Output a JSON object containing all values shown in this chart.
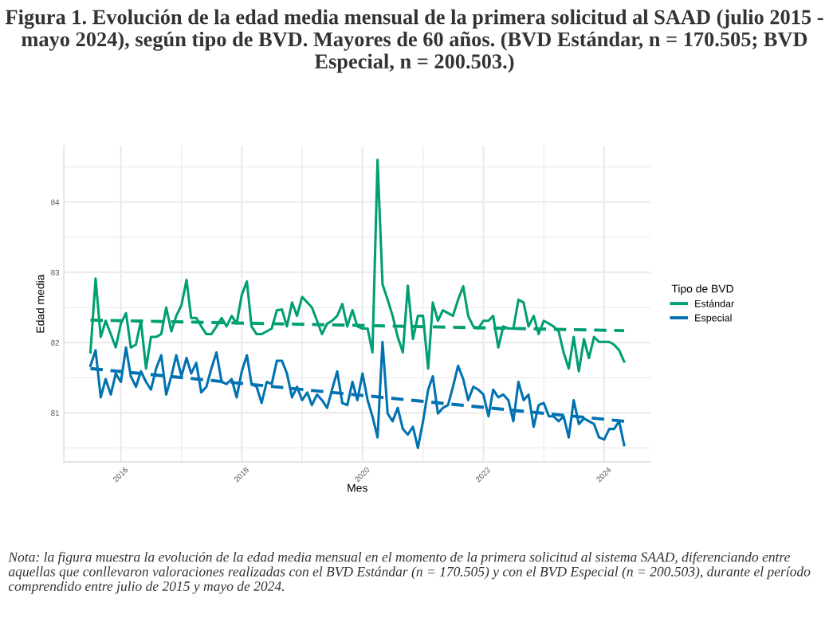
{
  "chart_data": {
    "type": "line",
    "title": "Figura 1. Evolución de la edad media mensual de la primera solicitud al SAAD (julio 2015 - mayo 2024), según tipo de BVD. Mayores de 60 años. (BVD Estándar, n = 170.505; BVD Especial, n = 200.503.)",
    "xlabel": "Mes",
    "ylabel": "Edad media",
    "legend_title": "Tipo de BVD",
    "annotations": [
      "Nota: la figura muestra la evolución de la edad media mensual en el momento de la primera solicitud al sistema SAAD, diferenciando entre aquellas que conllevaron valoraciones realizadas con el BVD Estándar (n = 170.505) y con el BVD Especial (n = 200.503), durante el período comprendido entre julio de 2015 y mayo de 2024."
    ],
    "x": [
      "2015-07",
      "2015-08",
      "2015-09",
      "2015-10",
      "2015-11",
      "2015-12",
      "2016-01",
      "2016-02",
      "2016-03",
      "2016-04",
      "2016-05",
      "2016-06",
      "2016-07",
      "2016-08",
      "2016-09",
      "2016-10",
      "2016-11",
      "2016-12",
      "2017-01",
      "2017-02",
      "2017-03",
      "2017-04",
      "2017-05",
      "2017-06",
      "2017-07",
      "2017-08",
      "2017-09",
      "2017-10",
      "2017-11",
      "2017-12",
      "2018-01",
      "2018-02",
      "2018-03",
      "2018-04",
      "2018-05",
      "2018-06",
      "2018-07",
      "2018-08",
      "2018-09",
      "2018-10",
      "2018-11",
      "2018-12",
      "2019-01",
      "2019-02",
      "2019-03",
      "2019-04",
      "2019-05",
      "2019-06",
      "2019-07",
      "2019-08",
      "2019-09",
      "2019-10",
      "2019-11",
      "2019-12",
      "2020-01",
      "2020-02",
      "2020-03",
      "2020-04",
      "2020-05",
      "2020-06",
      "2020-07",
      "2020-08",
      "2020-09",
      "2020-10",
      "2020-11",
      "2020-12",
      "2021-01",
      "2021-02",
      "2021-03",
      "2021-04",
      "2021-05",
      "2021-06",
      "2021-07",
      "2021-08",
      "2021-09",
      "2021-10",
      "2021-11",
      "2021-12",
      "2022-01",
      "2022-02",
      "2022-03",
      "2022-04",
      "2022-05",
      "2022-06",
      "2022-07",
      "2022-08",
      "2022-09",
      "2022-10",
      "2022-11",
      "2022-12",
      "2023-01",
      "2023-02",
      "2023-03",
      "2023-04",
      "2023-05",
      "2023-06",
      "2023-07",
      "2023-08",
      "2023-09",
      "2023-10",
      "2023-11",
      "2023-12",
      "2024-01",
      "2024-02",
      "2024-03",
      "2024-04",
      "2024-05"
    ],
    "series": [
      {
        "name": "Estándar",
        "color": "#009e73",
        "line_style": "solid",
        "values": [
          81.86,
          82.91,
          82.08,
          82.31,
          82.12,
          81.93,
          82.27,
          82.42,
          81.93,
          81.97,
          82.31,
          81.63,
          82.08,
          82.08,
          82.12,
          82.5,
          82.16,
          82.38,
          82.53,
          82.89,
          82.35,
          82.35,
          82.23,
          82.12,
          82.12,
          82.23,
          82.35,
          82.23,
          82.38,
          82.27,
          82.68,
          82.87,
          82.23,
          82.12,
          82.12,
          82.16,
          82.2,
          82.46,
          82.47,
          82.23,
          82.57,
          82.38,
          82.65,
          82.57,
          82.5,
          82.31,
          82.12,
          82.27,
          82.31,
          82.38,
          82.55,
          82.23,
          82.46,
          82.23,
          82.2,
          82.2,
          81.86,
          84.6,
          82.83,
          82.61,
          82.38,
          82.08,
          81.86,
          82.81,
          82.05,
          82.38,
          82.38,
          81.63,
          82.57,
          82.31,
          82.46,
          82.42,
          82.38,
          82.61,
          82.8,
          82.38,
          82.23,
          82.2,
          82.31,
          82.31,
          82.38,
          81.93,
          82.23,
          82.2,
          82.2,
          82.61,
          82.57,
          82.23,
          82.38,
          82.12,
          82.31,
          82.27,
          82.23,
          82.16,
          81.86,
          81.63,
          82.08,
          81.59,
          82.05,
          81.78,
          82.08,
          82.01,
          82.01,
          82.01,
          81.97,
          81.89,
          81.73
        ]
      },
      {
        "name": "Especial",
        "color": "#0072b2",
        "line_style": "solid",
        "values": [
          81.67,
          81.89,
          81.22,
          81.48,
          81.26,
          81.56,
          81.44,
          81.93,
          81.52,
          81.37,
          81.59,
          81.44,
          81.33,
          81.63,
          81.82,
          81.26,
          81.52,
          81.82,
          81.52,
          81.78,
          81.56,
          81.71,
          81.29,
          81.37,
          81.63,
          81.86,
          81.44,
          81.41,
          81.48,
          81.22,
          81.59,
          81.82,
          81.41,
          81.37,
          81.14,
          81.44,
          81.41,
          81.74,
          81.74,
          81.56,
          81.22,
          81.37,
          81.18,
          81.29,
          81.11,
          81.26,
          81.18,
          81.07,
          81.33,
          81.59,
          81.14,
          81.11,
          81.44,
          81.18,
          81.56,
          81.18,
          80.95,
          80.65,
          82.01,
          80.99,
          80.88,
          81.07,
          80.77,
          80.69,
          80.8,
          80.5,
          80.88,
          81.33,
          81.52,
          80.99,
          81.07,
          81.11,
          81.37,
          81.67,
          81.48,
          81.18,
          81.37,
          81.33,
          81.26,
          80.95,
          81.33,
          81.22,
          81.26,
          81.18,
          80.88,
          81.44,
          81.18,
          81.26,
          80.8,
          81.11,
          81.14,
          80.95,
          80.95,
          80.88,
          80.95,
          80.65,
          81.18,
          80.84,
          80.92,
          80.88,
          80.84,
          80.65,
          80.62,
          80.77,
          80.77,
          80.88,
          80.54
        ]
      },
      {
        "type": "line",
        "color": "#009e73",
        "line_style": "dashed",
        "x": [
          "2015-07",
          "2024-05"
        ],
        "values": [
          82.32,
          82.17
        ]
      },
      {
        "type": "line",
        "color": "#0072b2",
        "line_style": "dashed",
        "x": [
          "2015-07",
          "2024-05"
        ],
        "values": [
          81.63,
          80.88
        ]
      }
    ],
    "xlim": [
      "2015-01-21",
      "2024-10-09"
    ],
    "xticks": [
      {
        "value": "2016",
        "label": "2016"
      },
      {
        "value": "2017",
        "label": null
      },
      {
        "value": "2018",
        "label": "2018"
      },
      {
        "value": "2019",
        "label": null
      },
      {
        "value": "2020",
        "label": "2020"
      },
      {
        "value": "2021",
        "label": null
      },
      {
        "value": "2022",
        "label": "2022"
      },
      {
        "value": "2023",
        "label": null
      },
      {
        "value": "2024",
        "label": "2024"
      }
    ],
    "ylim": [
      80.3,
      84.8
    ],
    "yticks": [
      {
        "value": 80.5,
        "label": null
      },
      81,
      {
        "value": 81.5,
        "label": null
      },
      82,
      {
        "value": 82.5,
        "label": null
      },
      83,
      {
        "value": 83.5,
        "label": null
      },
      84,
      {
        "value": 84.5,
        "label": null
      }
    ],
    "grid": true,
    "legend": "right",
    "marker": "none"
  }
}
